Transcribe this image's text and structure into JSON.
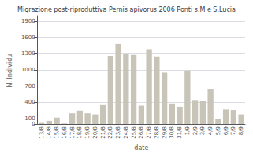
{
  "chart_data": {
    "type": "bar",
    "title": "Migrazione post-riproduttiva Pernis apivorus 2006 Ponti s.M e S.Lucia",
    "xlabel": "date",
    "ylabel": "N. Individui",
    "categories": [
      "13/8",
      "14/8",
      "15/8",
      "16/8",
      "17/8",
      "18/8",
      "19/8",
      "20/8",
      "21/8",
      "22/8",
      "23/8",
      "24/8",
      "25/8",
      "26/8",
      "27/8",
      "28/8",
      "29/8",
      "30/8",
      "31/8",
      "1/9",
      "2/9",
      "3/9",
      "4/9",
      "5/9",
      "6/9",
      "7/9",
      "8/9"
    ],
    "values": [
      20,
      60,
      120,
      10,
      200,
      250,
      200,
      180,
      350,
      1260,
      1480,
      1290,
      1280,
      340,
      1370,
      1250,
      950,
      380,
      320,
      990,
      430,
      420,
      650,
      100,
      270,
      260,
      180
    ],
    "color": "#c8c4b8",
    "ylim": [
      0,
      2000
    ],
    "yticks": [
      0,
      100,
      400,
      700,
      1000,
      1300,
      1600,
      1900
    ],
    "grid": true
  }
}
